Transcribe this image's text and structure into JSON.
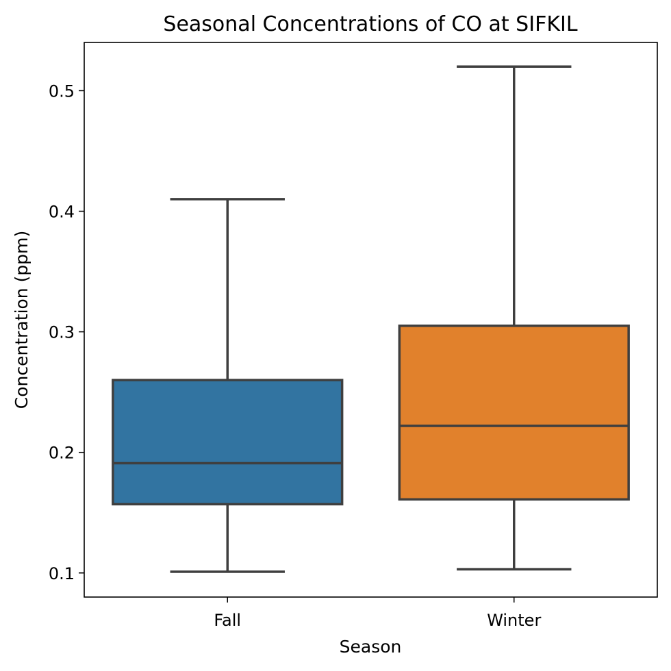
{
  "chart_data": {
    "type": "box",
    "title": "Seasonal Concentrations of CO at SIFKIL",
    "xlabel": "Season",
    "ylabel": "Concentration (ppm)",
    "ylim": [
      0.08,
      0.54
    ],
    "yticks": [
      0.1,
      0.2,
      0.3,
      0.4,
      0.5
    ],
    "ytick_labels": [
      "0.1",
      "0.2",
      "0.3",
      "0.4",
      "0.5"
    ],
    "categories": [
      "Fall",
      "Winter"
    ],
    "boxes": [
      {
        "category": "Fall",
        "whisker_low": 0.101,
        "q1": 0.157,
        "median": 0.191,
        "q3": 0.26,
        "whisker_high": 0.41,
        "color": "#3274a1"
      },
      {
        "category": "Winter",
        "whisker_low": 0.103,
        "q1": 0.161,
        "median": 0.222,
        "q3": 0.305,
        "whisker_high": 0.52,
        "color": "#e1812c"
      }
    ],
    "line_color": "#3f3f3f",
    "grid": false,
    "legend": "none"
  }
}
